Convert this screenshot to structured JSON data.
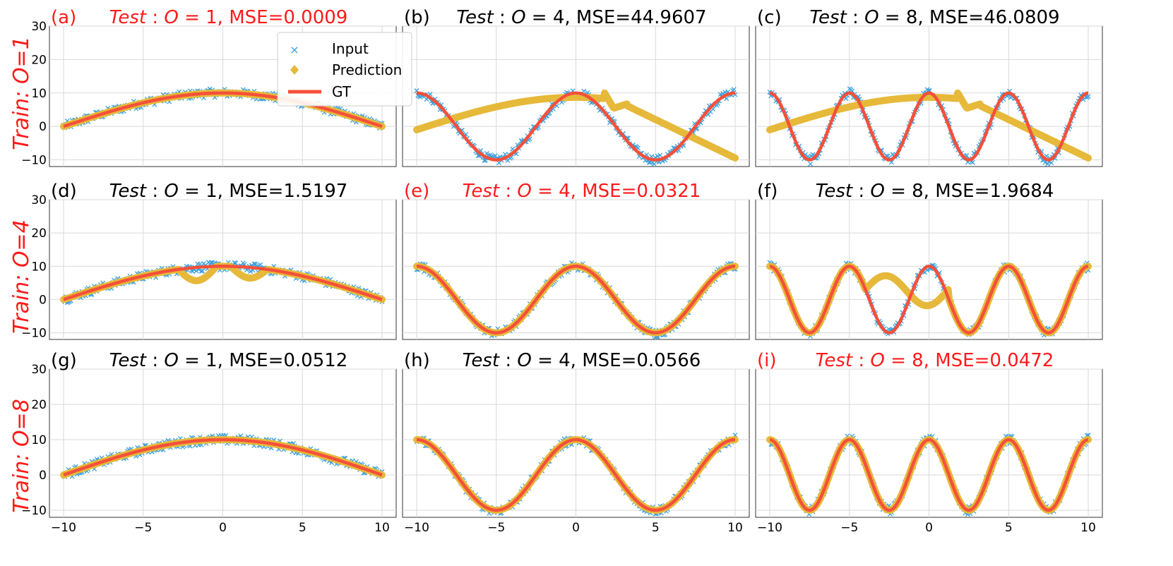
{
  "colors": {
    "input": "#3a9fdc",
    "prediction": "#e6b93a",
    "gt": "#f5503a",
    "highlight": "#ff1a1a",
    "text": "#000000",
    "grid": "#d9d9d9"
  },
  "row_labels": [
    "Train: O=1",
    "Train: O=4",
    "Train: O=8"
  ],
  "legend": {
    "input": "Input",
    "prediction": "Prediction",
    "gt": "GT"
  },
  "chart_data": {
    "type": "scatter",
    "description_series": [
      "Input (noisy samples)",
      "Prediction",
      "GT = 10*cos(O*pi*x/20)"
    ],
    "amplitude": 10,
    "xlim": [
      -10,
      10
    ],
    "ylim": [
      -12,
      30
    ],
    "xticks": [
      -10,
      -5,
      0,
      5,
      10
    ],
    "yticks": [
      -10,
      0,
      10,
      20,
      30
    ],
    "panels": [
      {
        "letter": "(a)",
        "train_o": 1,
        "test_o": 1,
        "mse": "0.0009",
        "highlight": true,
        "pred": "fit"
      },
      {
        "letter": "(b)",
        "train_o": 1,
        "test_o": 4,
        "mse": "44.9607",
        "highlight": false,
        "pred": "o1_drift"
      },
      {
        "letter": "(c)",
        "train_o": 1,
        "test_o": 8,
        "mse": "46.0809",
        "highlight": false,
        "pred": "o1_drift"
      },
      {
        "letter": "(d)",
        "train_o": 4,
        "test_o": 1,
        "mse": "1.5197",
        "highlight": false,
        "pred": "dip"
      },
      {
        "letter": "(e)",
        "train_o": 4,
        "test_o": 4,
        "mse": "0.0321",
        "highlight": true,
        "pred": "fit"
      },
      {
        "letter": "(f)",
        "train_o": 4,
        "test_o": 8,
        "mse": "1.9684",
        "highlight": false,
        "pred": "partial"
      },
      {
        "letter": "(g)",
        "train_o": 8,
        "test_o": 1,
        "mse": "0.0512",
        "highlight": false,
        "pred": "fit"
      },
      {
        "letter": "(h)",
        "train_o": 8,
        "test_o": 4,
        "mse": "0.0566",
        "highlight": false,
        "pred": "fit"
      },
      {
        "letter": "(i)",
        "train_o": 8,
        "test_o": 8,
        "mse": "0.0472",
        "highlight": true,
        "pred": "fit"
      }
    ]
  }
}
